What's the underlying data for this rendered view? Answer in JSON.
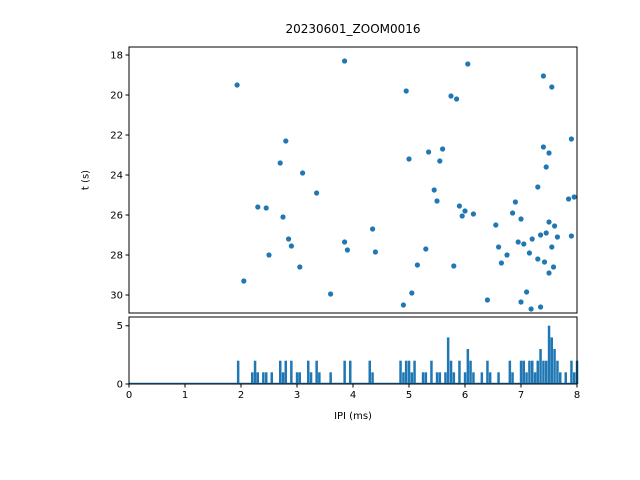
{
  "figure": {
    "background": "#ffffff",
    "accent": "#1f77b4"
  },
  "chart_data": [
    {
      "type": "scatter",
      "title": "20230601_ZOOM0016",
      "xlabel": "",
      "ylabel": "t (s)",
      "xlim": [
        0,
        8
      ],
      "ylim": [
        17.6,
        30.9
      ],
      "y_inverted": true,
      "yticks": [
        18,
        20,
        22,
        24,
        26,
        28,
        30
      ],
      "marker_color": "#1f77b4",
      "points": [
        [
          1.93,
          19.5
        ],
        [
          3.85,
          18.3
        ],
        [
          6.05,
          18.45
        ],
        [
          7.4,
          19.05
        ],
        [
          7.55,
          19.6
        ],
        [
          4.95,
          19.8
        ],
        [
          5.75,
          20.05
        ],
        [
          5.85,
          20.2
        ],
        [
          2.8,
          22.3
        ],
        [
          7.9,
          22.2
        ],
        [
          7.4,
          22.6
        ],
        [
          7.5,
          22.9
        ],
        [
          5.35,
          22.85
        ],
        [
          5.6,
          22.7
        ],
        [
          5.0,
          23.2
        ],
        [
          5.55,
          23.3
        ],
        [
          2.7,
          23.4
        ],
        [
          7.45,
          23.6
        ],
        [
          3.1,
          23.9
        ],
        [
          3.35,
          24.9
        ],
        [
          5.45,
          24.75
        ],
        [
          5.5,
          25.3
        ],
        [
          7.3,
          24.6
        ],
        [
          6.9,
          25.35
        ],
        [
          7.85,
          25.2
        ],
        [
          7.95,
          25.1
        ],
        [
          2.3,
          25.6
        ],
        [
          2.45,
          25.65
        ],
        [
          5.9,
          25.55
        ],
        [
          6.0,
          25.8
        ],
        [
          5.95,
          26.05
        ],
        [
          6.15,
          25.95
        ],
        [
          6.85,
          25.9
        ],
        [
          7.0,
          26.2
        ],
        [
          2.75,
          26.1
        ],
        [
          4.35,
          26.7
        ],
        [
          6.55,
          26.5
        ],
        [
          7.5,
          26.35
        ],
        [
          7.6,
          26.55
        ],
        [
          2.85,
          27.2
        ],
        [
          2.9,
          27.55
        ],
        [
          3.85,
          27.35
        ],
        [
          3.9,
          27.75
        ],
        [
          2.5,
          28.0
        ],
        [
          4.4,
          27.85
        ],
        [
          5.3,
          27.7
        ],
        [
          6.6,
          27.6
        ],
        [
          6.95,
          27.35
        ],
        [
          7.05,
          27.45
        ],
        [
          7.2,
          27.2
        ],
        [
          7.35,
          27.0
        ],
        [
          7.45,
          26.9
        ],
        [
          7.55,
          27.6
        ],
        [
          7.65,
          27.1
        ],
        [
          7.9,
          27.05
        ],
        [
          6.75,
          28.0
        ],
        [
          7.15,
          27.9
        ],
        [
          2.05,
          29.3
        ],
        [
          3.05,
          28.6
        ],
        [
          5.15,
          28.5
        ],
        [
          5.8,
          28.55
        ],
        [
          6.65,
          28.4
        ],
        [
          7.3,
          28.2
        ],
        [
          7.42,
          28.35
        ],
        [
          7.5,
          28.9
        ],
        [
          7.58,
          28.6
        ],
        [
          3.6,
          29.95
        ],
        [
          4.9,
          30.5
        ],
        [
          5.05,
          29.9
        ],
        [
          6.4,
          30.25
        ],
        [
          7.0,
          30.35
        ],
        [
          7.1,
          29.85
        ],
        [
          7.18,
          30.7
        ],
        [
          7.35,
          30.6
        ]
      ]
    },
    {
      "type": "bar",
      "xlabel": "IPI (ms)",
      "ylabel": "",
      "xlim": [
        0,
        8
      ],
      "ylim": [
        0,
        5.75
      ],
      "xticks": [
        0,
        1,
        2,
        3,
        4,
        5,
        6,
        7,
        8
      ],
      "yticks": [
        0,
        5
      ],
      "bar_color": "#1f77b4",
      "bars": [
        [
          1.95,
          2
        ],
        [
          2.2,
          1
        ],
        [
          2.25,
          2
        ],
        [
          2.3,
          1
        ],
        [
          2.4,
          1
        ],
        [
          2.45,
          1
        ],
        [
          2.55,
          1
        ],
        [
          2.7,
          2
        ],
        [
          2.75,
          1
        ],
        [
          2.8,
          2
        ],
        [
          2.9,
          2
        ],
        [
          3.0,
          1
        ],
        [
          3.05,
          1
        ],
        [
          3.2,
          2
        ],
        [
          3.25,
          1
        ],
        [
          3.35,
          2
        ],
        [
          3.4,
          1
        ],
        [
          3.6,
          1
        ],
        [
          3.85,
          2
        ],
        [
          3.95,
          2
        ],
        [
          4.3,
          2
        ],
        [
          4.35,
          1
        ],
        [
          4.85,
          2
        ],
        [
          4.9,
          1
        ],
        [
          4.95,
          2
        ],
        [
          5.0,
          2
        ],
        [
          5.05,
          1
        ],
        [
          5.1,
          2
        ],
        [
          5.25,
          1
        ],
        [
          5.3,
          1
        ],
        [
          5.4,
          2
        ],
        [
          5.5,
          1
        ],
        [
          5.55,
          1
        ],
        [
          5.65,
          1
        ],
        [
          5.7,
          4
        ],
        [
          5.75,
          2
        ],
        [
          5.8,
          1
        ],
        [
          5.9,
          2
        ],
        [
          6.0,
          1
        ],
        [
          6.05,
          3
        ],
        [
          6.1,
          2
        ],
        [
          6.15,
          1
        ],
        [
          6.3,
          1
        ],
        [
          6.4,
          2
        ],
        [
          6.45,
          1
        ],
        [
          6.6,
          1
        ],
        [
          6.8,
          2
        ],
        [
          6.85,
          1
        ],
        [
          7.0,
          2
        ],
        [
          7.05,
          2
        ],
        [
          7.1,
          1
        ],
        [
          7.15,
          2
        ],
        [
          7.2,
          2
        ],
        [
          7.25,
          1
        ],
        [
          7.3,
          2
        ],
        [
          7.35,
          3
        ],
        [
          7.4,
          2
        ],
        [
          7.45,
          2
        ],
        [
          7.5,
          5
        ],
        [
          7.55,
          4
        ],
        [
          7.6,
          3
        ],
        [
          7.65,
          2
        ],
        [
          7.7,
          1
        ],
        [
          7.8,
          1
        ],
        [
          7.9,
          2
        ],
        [
          7.95,
          1
        ],
        [
          8.0,
          2
        ]
      ]
    }
  ]
}
